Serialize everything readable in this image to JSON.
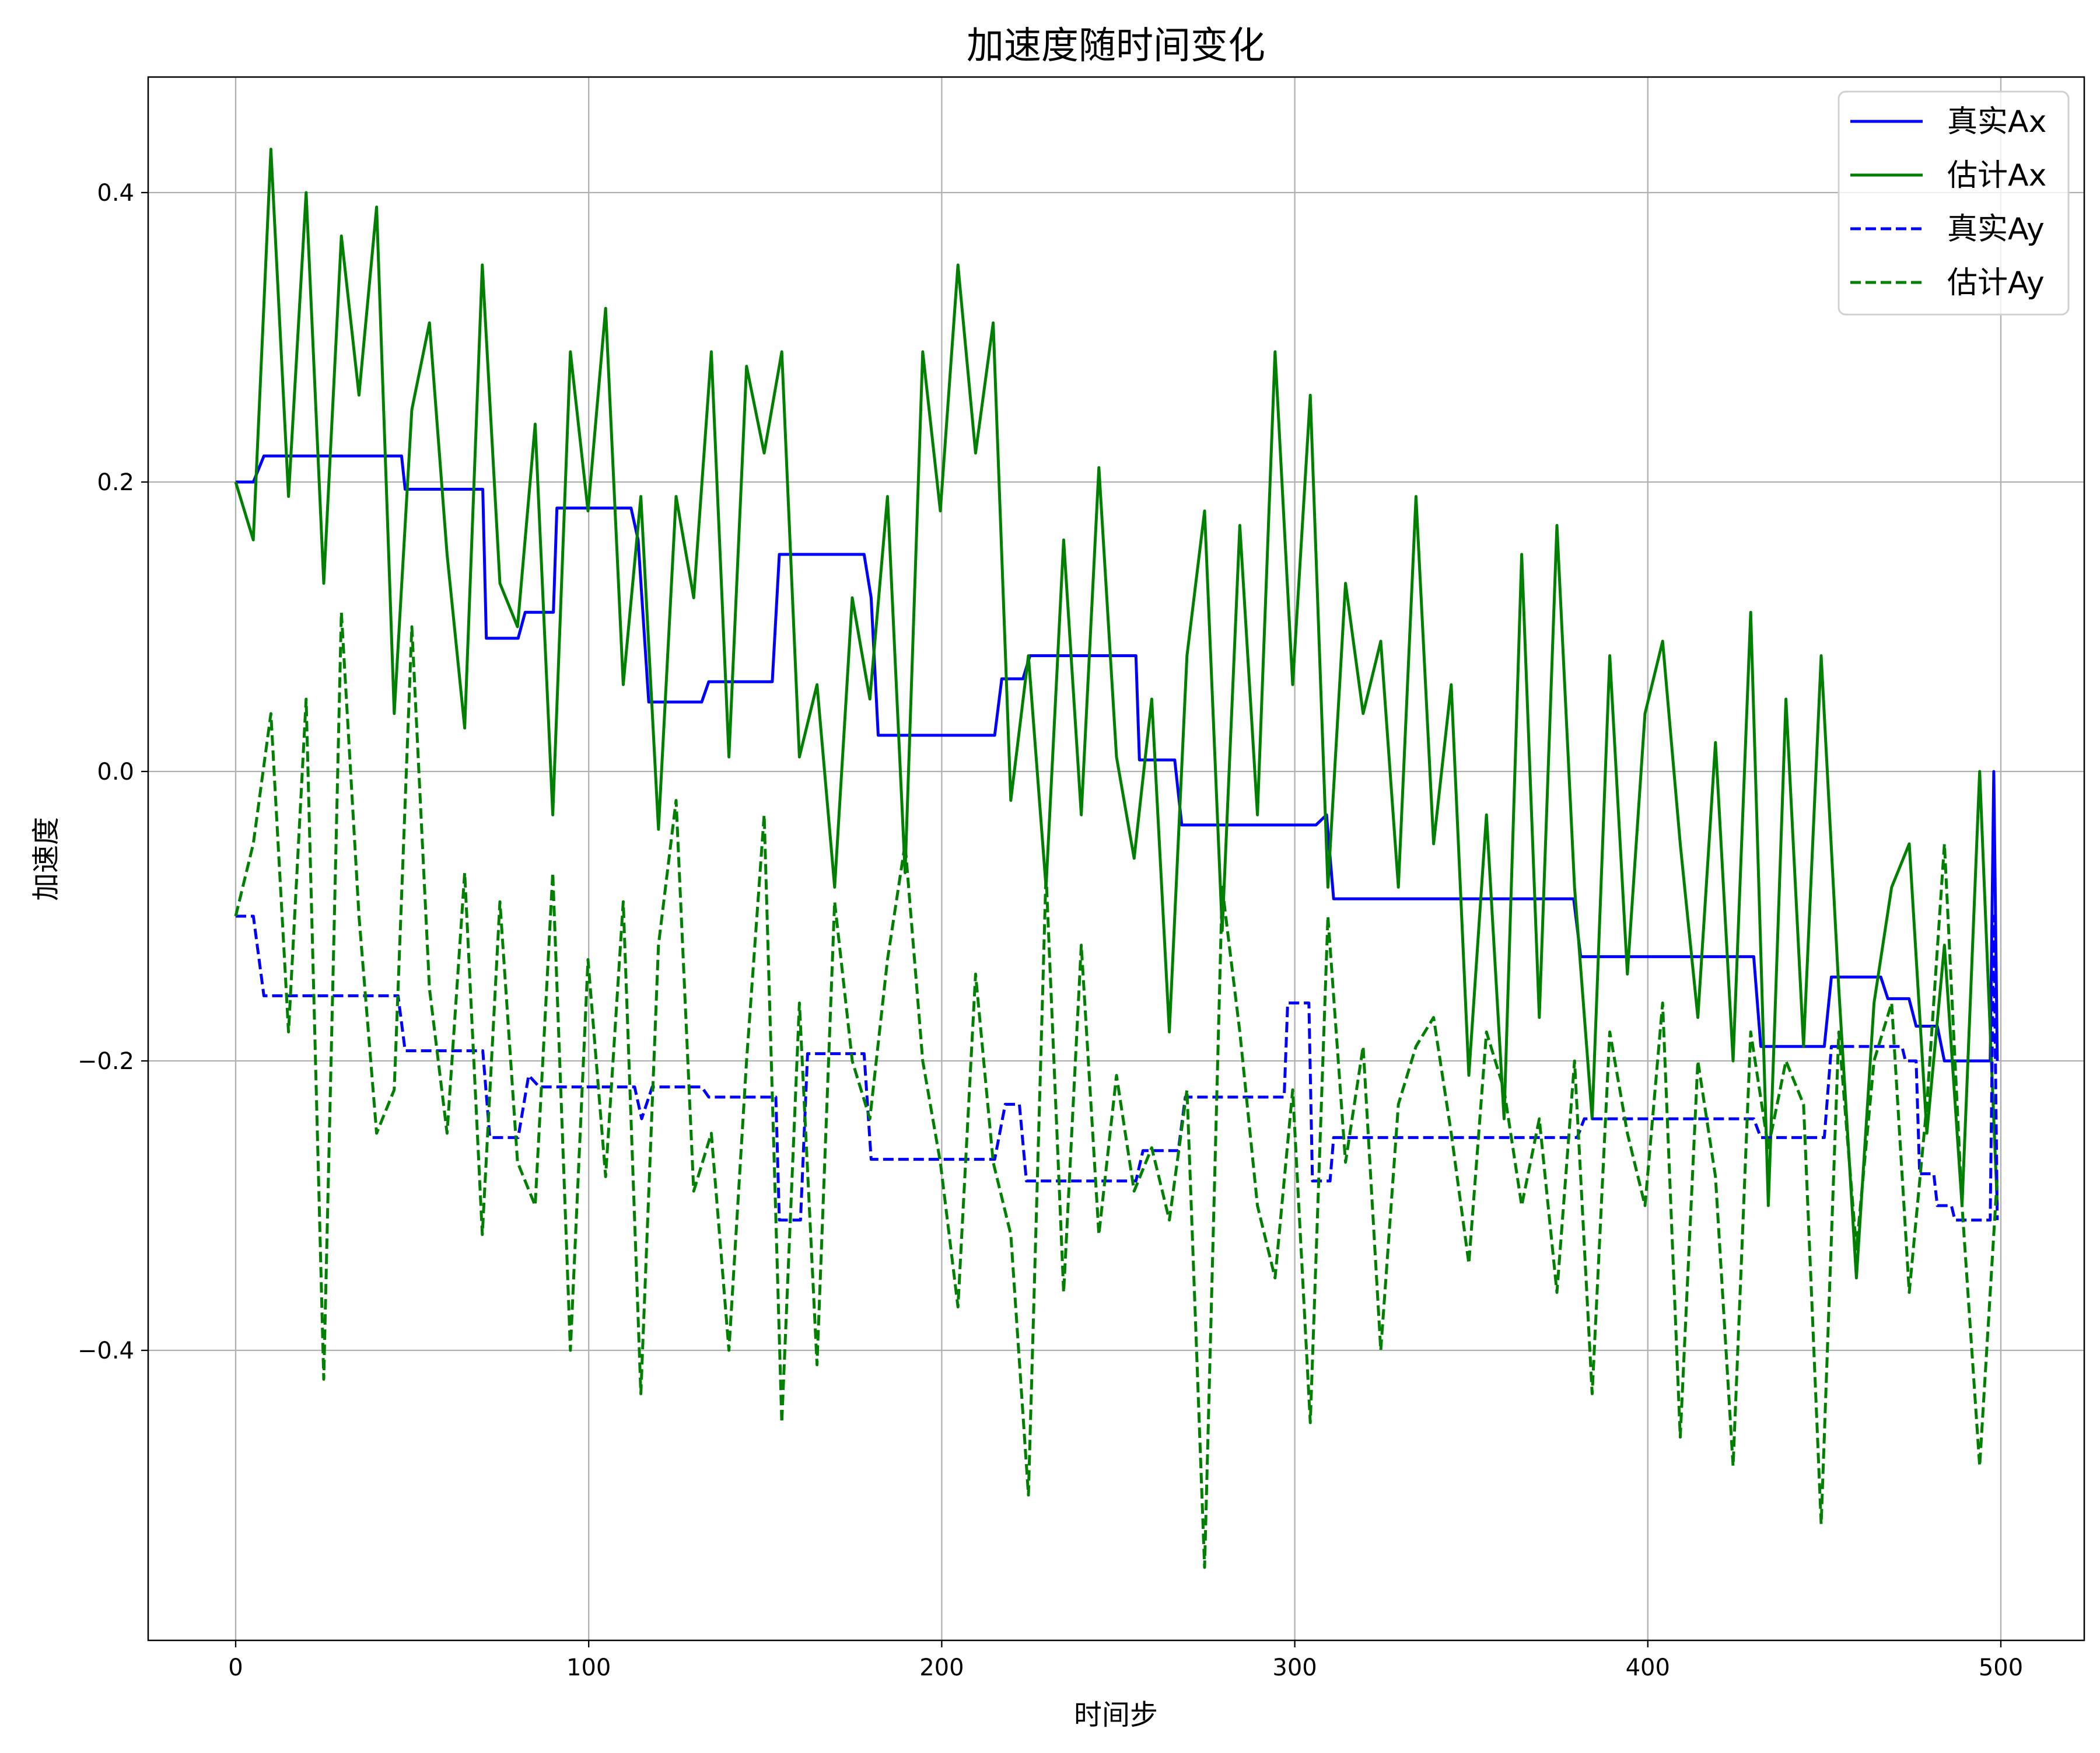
{
  "chart_data": {
    "type": "line",
    "title": "加速度随时间变化",
    "xlabel": "时间步",
    "ylabel": "加速度",
    "xlim": [
      -25,
      524
    ],
    "ylim": [
      -0.6,
      0.48
    ],
    "xticks": [
      0,
      100,
      200,
      300,
      400,
      500
    ],
    "xtick_labels": [
      "0",
      "100",
      "200",
      "300",
      "400",
      "500"
    ],
    "yticks": [
      -0.4,
      -0.2,
      0.0,
      0.2,
      0.4
    ],
    "ytick_labels": [
      "−0.4",
      "−0.2",
      "0.0",
      "0.2",
      "0.4"
    ],
    "grid": true,
    "legend_position": "top-right",
    "series": [
      {
        "name": "真实Ax",
        "color": "#0000ff",
        "style": "solid",
        "points": [
          [
            0,
            0.2
          ],
          [
            5,
            0.2
          ],
          [
            8,
            0.218
          ],
          [
            47,
            0.218
          ],
          [
            48,
            0.195
          ],
          [
            70,
            0.195
          ],
          [
            71,
            0.092
          ],
          [
            80,
            0.092
          ],
          [
            82,
            0.11
          ],
          [
            90,
            0.11
          ],
          [
            91,
            0.182
          ],
          [
            112,
            0.182
          ],
          [
            114,
            0.16
          ],
          [
            117,
            0.048
          ],
          [
            132,
            0.048
          ],
          [
            134,
            0.062
          ],
          [
            152,
            0.062
          ],
          [
            154,
            0.15
          ],
          [
            178,
            0.15
          ],
          [
            180,
            0.12
          ],
          [
            182,
            0.025
          ],
          [
            215,
            0.025
          ],
          [
            217,
            0.064
          ],
          [
            223,
            0.064
          ],
          [
            225,
            0.08
          ],
          [
            255,
            0.08
          ],
          [
            256,
            0.008
          ],
          [
            266,
            0.008
          ],
          [
            268,
            -0.037
          ],
          [
            306,
            -0.037
          ],
          [
            309,
            -0.03
          ],
          [
            311,
            -0.088
          ],
          [
            379,
            -0.088
          ],
          [
            381,
            -0.128
          ],
          [
            430,
            -0.128
          ],
          [
            432,
            -0.19
          ],
          [
            450,
            -0.19
          ],
          [
            452,
            -0.142
          ],
          [
            466,
            -0.142
          ],
          [
            468,
            -0.157
          ],
          [
            474,
            -0.157
          ],
          [
            476,
            -0.176
          ],
          [
            482,
            -0.176
          ],
          [
            484,
            -0.2
          ],
          [
            497,
            -0.2
          ],
          [
            498,
            0.0
          ],
          [
            499,
            -0.2
          ]
        ]
      },
      {
        "name": "估计Ax",
        "color": "#008000",
        "style": "solid",
        "values": [
          0.2,
          0.16,
          0.43,
          0.19,
          0.4,
          0.13,
          0.37,
          0.26,
          0.39,
          0.04,
          0.25,
          0.31,
          0.15,
          0.03,
          0.35,
          0.13,
          0.1,
          0.24,
          -0.03,
          0.29,
          0.18,
          0.32,
          0.06,
          0.19,
          -0.04,
          0.19,
          0.12,
          0.29,
          0.01,
          0.28,
          0.22,
          0.29,
          0.01,
          0.06,
          -0.08,
          0.12,
          0.05,
          0.19,
          -0.07,
          0.29,
          0.18,
          0.35,
          0.22,
          0.31,
          -0.02,
          0.08,
          -0.08,
          0.16,
          -0.03,
          0.21,
          0.01,
          -0.06,
          0.05,
          -0.18,
          0.08,
          0.18,
          -0.11,
          0.17,
          -0.03,
          0.29,
          0.06,
          0.26,
          -0.08,
          0.13,
          0.04,
          0.09,
          -0.08,
          0.19,
          -0.05,
          0.06,
          -0.21,
          -0.03,
          -0.24,
          0.15,
          -0.17,
          0.17,
          -0.08,
          -0.24,
          0.08,
          -0.14,
          0.04,
          0.09,
          -0.05,
          -0.17,
          0.02,
          -0.2,
          0.11,
          -0.3,
          0.05,
          -0.19,
          0.08,
          -0.15,
          -0.35,
          -0.16,
          -0.08,
          -0.05,
          -0.25,
          -0.12,
          -0.3,
          0.0,
          -0.3
        ]
      },
      {
        "name": "真实Ay",
        "color": "#0000ff",
        "style": "dashed",
        "points": [
          [
            0,
            -0.1
          ],
          [
            5,
            -0.1
          ],
          [
            8,
            -0.155
          ],
          [
            46,
            -0.155
          ],
          [
            48,
            -0.193
          ],
          [
            70,
            -0.193
          ],
          [
            72,
            -0.253
          ],
          [
            80,
            -0.253
          ],
          [
            83,
            -0.21
          ],
          [
            86,
            -0.218
          ],
          [
            113,
            -0.218
          ],
          [
            115,
            -0.24
          ],
          [
            118,
            -0.218
          ],
          [
            132,
            -0.218
          ],
          [
            134,
            -0.225
          ],
          [
            153,
            -0.225
          ],
          [
            154,
            -0.31
          ],
          [
            160,
            -0.31
          ],
          [
            162,
            -0.195
          ],
          [
            178,
            -0.195
          ],
          [
            180,
            -0.268
          ],
          [
            215,
            -0.268
          ],
          [
            218,
            -0.23
          ],
          [
            222,
            -0.23
          ],
          [
            224,
            -0.283
          ],
          [
            255,
            -0.283
          ],
          [
            257,
            -0.262
          ],
          [
            267,
            -0.262
          ],
          [
            269,
            -0.225
          ],
          [
            297,
            -0.225
          ],
          [
            298,
            -0.16
          ],
          [
            304,
            -0.16
          ],
          [
            305,
            -0.283
          ],
          [
            310,
            -0.283
          ],
          [
            311,
            -0.253
          ],
          [
            380,
            -0.253
          ],
          [
            382,
            -0.24
          ],
          [
            430,
            -0.24
          ],
          [
            432,
            -0.253
          ],
          [
            450,
            -0.253
          ],
          [
            452,
            -0.19
          ],
          [
            472,
            -0.19
          ],
          [
            473,
            -0.2
          ],
          [
            476,
            -0.2
          ],
          [
            477,
            -0.278
          ],
          [
            481,
            -0.278
          ],
          [
            482,
            -0.3
          ],
          [
            486,
            -0.3
          ],
          [
            487,
            -0.31
          ],
          [
            497,
            -0.31
          ],
          [
            498,
            -0.1
          ],
          [
            499,
            -0.31
          ]
        ]
      },
      {
        "name": "估计Ay",
        "color": "#008000",
        "style": "dashed",
        "values": [
          -0.1,
          -0.05,
          0.04,
          -0.18,
          0.05,
          -0.42,
          0.11,
          -0.1,
          -0.25,
          -0.22,
          0.1,
          -0.15,
          -0.25,
          -0.07,
          -0.32,
          -0.09,
          -0.27,
          -0.3,
          -0.07,
          -0.4,
          -0.13,
          -0.28,
          -0.09,
          -0.43,
          -0.12,
          -0.02,
          -0.29,
          -0.25,
          -0.4,
          -0.2,
          -0.03,
          -0.45,
          -0.16,
          -0.41,
          -0.09,
          -0.2,
          -0.24,
          -0.13,
          -0.05,
          -0.2,
          -0.27,
          -0.37,
          -0.14,
          -0.27,
          -0.32,
          -0.5,
          -0.07,
          -0.36,
          -0.12,
          -0.32,
          -0.21,
          -0.29,
          -0.26,
          -0.31,
          -0.22,
          -0.55,
          -0.08,
          -0.18,
          -0.3,
          -0.35,
          -0.22,
          -0.45,
          -0.1,
          -0.27,
          -0.19,
          -0.4,
          -0.23,
          -0.19,
          -0.17,
          -0.25,
          -0.34,
          -0.18,
          -0.22,
          -0.3,
          -0.24,
          -0.36,
          -0.2,
          -0.43,
          -0.18,
          -0.25,
          -0.3,
          -0.16,
          -0.46,
          -0.2,
          -0.28,
          -0.48,
          -0.18,
          -0.26,
          -0.2,
          -0.23,
          -0.52,
          -0.18,
          -0.33,
          -0.2,
          -0.16,
          -0.36,
          -0.23,
          -0.05,
          -0.3,
          -0.48,
          -0.28
        ]
      }
    ]
  }
}
